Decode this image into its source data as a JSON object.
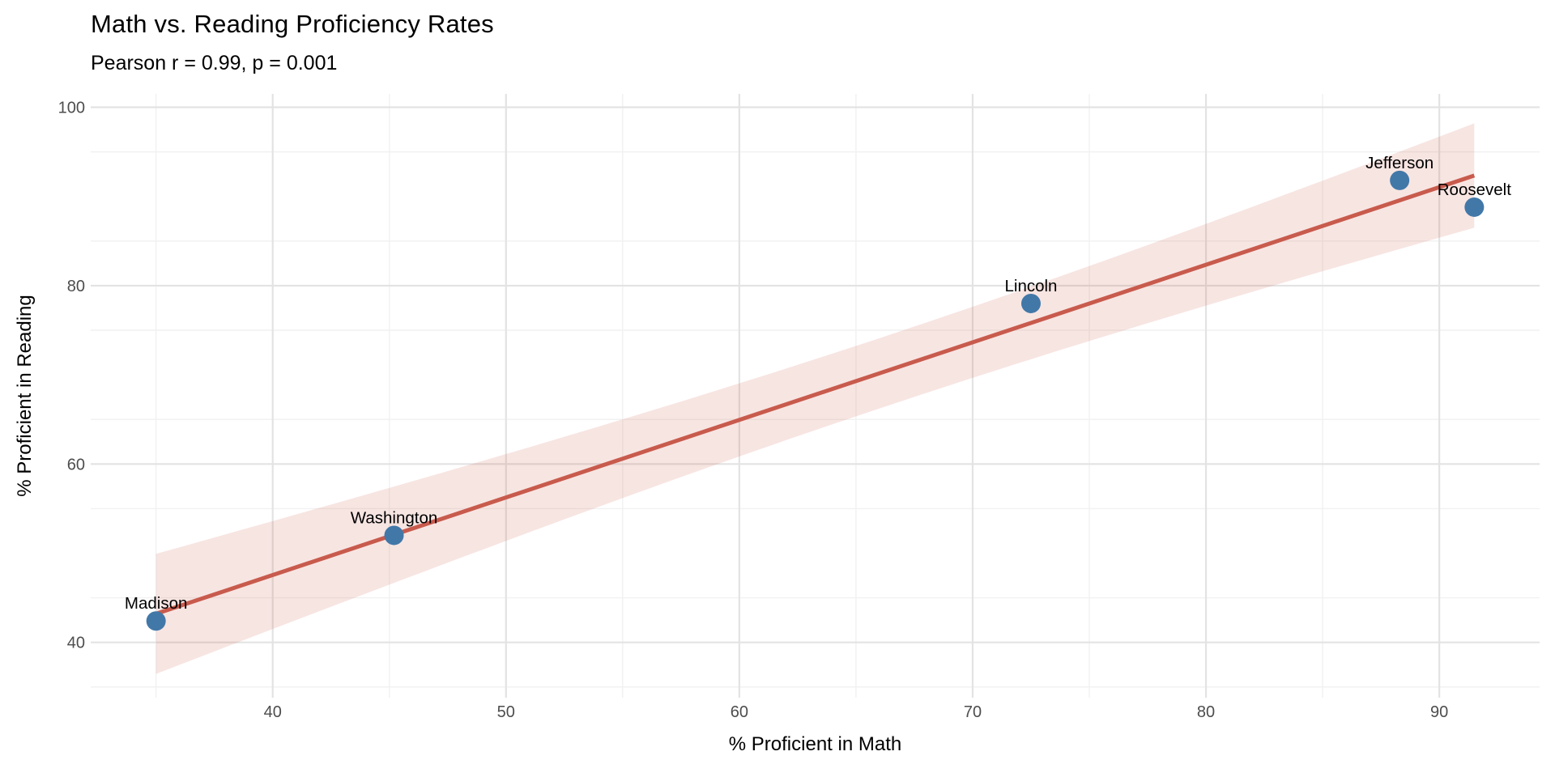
{
  "chart_data": {
    "type": "scatter",
    "title": "Math vs. Reading Proficiency Rates",
    "subtitle": "Pearson r = 0.99, p = 0.001",
    "xlabel": "% Proficient in Math",
    "ylabel": "% Proficient in Reading",
    "points": [
      {
        "label": "Madison",
        "x": 35.0,
        "y": 42.4
      },
      {
        "label": "Washington",
        "x": 45.2,
        "y": 52.0
      },
      {
        "label": "Lincoln",
        "x": 72.5,
        "y": 78.0
      },
      {
        "label": "Jefferson",
        "x": 88.3,
        "y": 91.8
      },
      {
        "label": "Roosevelt",
        "x": 91.5,
        "y": 88.8
      }
    ],
    "stats": {
      "pearson_r": 0.99,
      "p_value": 0.001
    },
    "trend": {
      "type": "linear_regression",
      "ci_level": 0.95,
      "show_ribbon": true
    },
    "x_ticks": [
      40,
      50,
      60,
      70,
      80,
      90
    ],
    "y_ticks": [
      40,
      60,
      80,
      100
    ],
    "x_minor_ticks": [
      35,
      45,
      55,
      65,
      75,
      85,
      95
    ],
    "y_minor_ticks": [
      35,
      45,
      55,
      65,
      75,
      85,
      95
    ],
    "xlim": [
      32.2,
      94.3
    ],
    "ylim": [
      33.8,
      101.5
    ],
    "grid": true,
    "legend": "none"
  },
  "colors": {
    "background": "#ffffff",
    "point": "#4278a8",
    "trend_line": "#c85b4d",
    "ci_ribbon": "rgba(205, 92, 77, 0.16)",
    "grid_major": "#e3e3e3",
    "grid_minor": "#f1f1f1",
    "tick_label": "#4d4d4d",
    "text": "#000000"
  }
}
